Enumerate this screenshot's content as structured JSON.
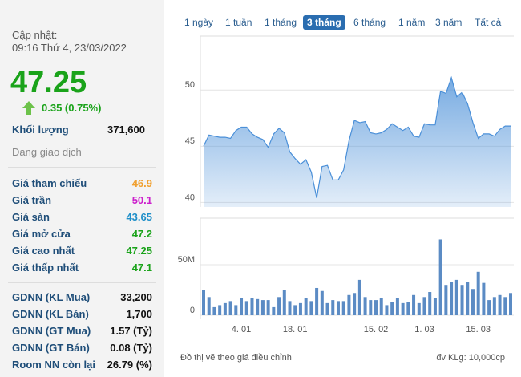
{
  "header": {
    "update_label": "Cập nhật:",
    "update_time": "09:16 Thứ 4, 23/03/2022"
  },
  "quote": {
    "last": "47.25",
    "change": "0.35 (0.75%)",
    "color": "#1aa31a"
  },
  "volume": {
    "label": "Khối lượng",
    "value": "371,600"
  },
  "status": "Đang giao dịch",
  "prices": [
    {
      "label": "Giá tham chiếu",
      "value": "46.9",
      "color": "#f0a030"
    },
    {
      "label": "Giá trần",
      "value": "50.1",
      "color": "#cc1fcc"
    },
    {
      "label": "Giá sàn",
      "value": "43.65",
      "color": "#1f8fc9"
    },
    {
      "label": "Giá mở cửa",
      "value": "47.2",
      "color": "#1aa31a"
    },
    {
      "label": "Giá cao nhất",
      "value": "47.25",
      "color": "#1aa31a"
    },
    {
      "label": "Giá thấp nhất",
      "value": "47.1",
      "color": "#1aa31a"
    }
  ],
  "foreign": [
    {
      "label": "GDNN (KL Mua)",
      "value": "33,200"
    },
    {
      "label": "GDNN (KL Bán)",
      "value": "1,700"
    },
    {
      "label": "GDNN (GT Mua)",
      "value": "1.57 (Tỷ)"
    },
    {
      "label": "GDNN (GT Bán)",
      "value": "0.08 (Tỷ)"
    },
    {
      "label": "Room NN còn lại",
      "value": "26.79 (%)"
    }
  ],
  "periods": {
    "options": [
      "1 ngày",
      "1 tuần",
      "1 tháng",
      "3 tháng",
      "6 tháng",
      "1 năm",
      "3 năm",
      "Tất cả"
    ],
    "selected": 3
  },
  "chart_data": [
    {
      "type": "area",
      "color": "#4a8fd8",
      "ylim": [
        39.6,
        54.8
      ],
      "yticks": [
        40,
        45,
        50
      ],
      "grid": true,
      "values": [
        45.0,
        46.0,
        45.9,
        45.8,
        45.8,
        45.7,
        46.4,
        46.7,
        46.7,
        46.1,
        45.8,
        45.6,
        44.9,
        46.1,
        46.6,
        46.2,
        44.5,
        43.9,
        43.4,
        43.8,
        42.7,
        40.4,
        43.2,
        43.3,
        42.0,
        42.0,
        42.9,
        45.5,
        47.3,
        47.1,
        47.2,
        46.2,
        46.1,
        46.2,
        46.5,
        47.0,
        46.7,
        46.4,
        46.7,
        45.9,
        45.8,
        47.0,
        46.9,
        46.9,
        49.9,
        49.7,
        51.1,
        49.4,
        49.8,
        48.8,
        47.1,
        45.7,
        46.1,
        46.1,
        45.9,
        46.5,
        46.8,
        46.8
      ]
    },
    {
      "type": "bar",
      "color": "#5b8bc4",
      "ylim": [
        0,
        96000000
      ],
      "yticks": [
        0,
        {
          "value": 50000000,
          "label": "50M"
        }
      ],
      "grid": true,
      "categories": [
        null,
        null,
        null,
        null,
        null,
        null,
        null,
        "4. 01",
        null,
        null,
        null,
        null,
        null,
        null,
        null,
        null,
        null,
        "18. 01",
        null,
        null,
        null,
        null,
        null,
        null,
        null,
        null,
        null,
        null,
        null,
        null,
        null,
        null,
        "15. 02",
        null,
        null,
        null,
        null,
        null,
        null,
        null,
        null,
        "1. 03",
        null,
        null,
        null,
        null,
        null,
        null,
        null,
        null,
        null,
        "15. 03",
        null,
        null,
        null,
        null,
        null,
        null
      ],
      "values": [
        25000000,
        18000000,
        8000000,
        10000000,
        12000000,
        14000000,
        10000000,
        17000000,
        14000000,
        17000000,
        16000000,
        15000000,
        15000000,
        8000000,
        18000000,
        25000000,
        14000000,
        10000000,
        12000000,
        17000000,
        14000000,
        27000000,
        24000000,
        12000000,
        15000000,
        14000000,
        14000000,
        20000000,
        22000000,
        35000000,
        18000000,
        15000000,
        15000000,
        17000000,
        10000000,
        13000000,
        17000000,
        12000000,
        13000000,
        20000000,
        12000000,
        18000000,
        23000000,
        17000000,
        75000000,
        30000000,
        33000000,
        35000000,
        30000000,
        33000000,
        26000000,
        43000000,
        32000000,
        15000000,
        18000000,
        20000000,
        18000000,
        22000000
      ]
    }
  ],
  "footer": {
    "note": "Đồ thị vẽ theo giá điều chỉnh",
    "unit": "đv KLg: 10,000cp"
  }
}
